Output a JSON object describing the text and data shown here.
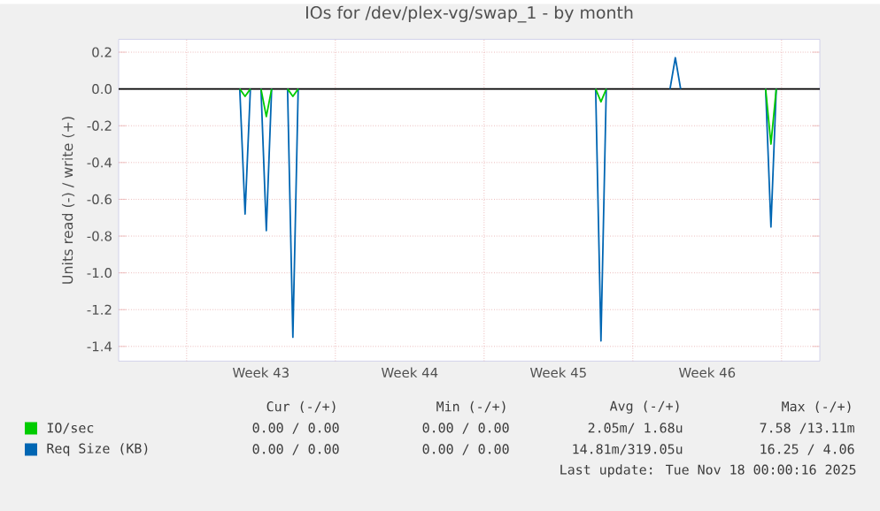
{
  "chart_data": {
    "type": "line",
    "title": "IOs for /dev/plex-vg/swap_1 - by month",
    "ylabel": "Units read (-) / write (+)",
    "categories": [
      null,
      null,
      null,
      null,
      null,
      null,
      null,
      null,
      null,
      null,
      null,
      null,
      null,
      null,
      null,
      null,
      null,
      null,
      null,
      null,
      null,
      null,
      null,
      null,
      null,
      null,
      "Week 43",
      null,
      null,
      null,
      null,
      null,
      null,
      null,
      null,
      null,
      null,
      null,
      null,
      null,
      null,
      null,
      null,
      null,
      null,
      null,
      null,
      null,
      null,
      null,
      null,
      null,
      null,
      null,
      "Week 44",
      null,
      null,
      null,
      null,
      null,
      null,
      null,
      null,
      null,
      null,
      null,
      null,
      null,
      null,
      null,
      null,
      null,
      null,
      null,
      null,
      null,
      null,
      null,
      null,
      null,
      null,
      null,
      "Week 45",
      null,
      null,
      null,
      null,
      null,
      null,
      null,
      null,
      null,
      null,
      null,
      null,
      null,
      null,
      null,
      null,
      null,
      null,
      null,
      null,
      null,
      null,
      null,
      null,
      null,
      null,
      null,
      "Week 46",
      null,
      null,
      null,
      null,
      null,
      null,
      null,
      null,
      null,
      null,
      null,
      null,
      null,
      null,
      null,
      null,
      null,
      null,
      null,
      null,
      null
    ],
    "ylim": [
      -1.48,
      0.27
    ],
    "yticks": [
      {
        "value": -1.4,
        "label": "-1.4"
      },
      {
        "value": -1.2,
        "label": "-1.2"
      },
      {
        "value": -1.0,
        "label": "-1.0"
      },
      {
        "value": -0.8,
        "label": "-0.8"
      },
      {
        "value": -0.6,
        "label": "-0.6"
      },
      {
        "value": -0.4,
        "label": "-0.4"
      },
      {
        "value": -0.2,
        "label": "-0.2"
      },
      {
        "value": 0,
        "label": "0.0"
      },
      {
        "value": 0.2,
        "label": "0.2"
      }
    ],
    "grid": true,
    "legend": "bottom",
    "ref_lines": [
      {
        "axis": "y",
        "value": 0,
        "color": "#000000"
      }
    ],
    "series": [
      {
        "name": "Req Size (KB)",
        "color": "#0066b3",
        "values": [
          null,
          null,
          null,
          null,
          null,
          null,
          null,
          null,
          null,
          null,
          null,
          null,
          null,
          null,
          null,
          null,
          null,
          null,
          null,
          null,
          null,
          null,
          0,
          -0.68,
          0,
          null,
          0,
          -0.77,
          0,
          null,
          null,
          0,
          -1.35,
          0,
          null,
          null,
          null,
          null,
          null,
          null,
          null,
          null,
          null,
          null,
          null,
          null,
          null,
          null,
          null,
          null,
          null,
          null,
          null,
          null,
          null,
          null,
          null,
          null,
          null,
          null,
          null,
          null,
          null,
          null,
          null,
          null,
          null,
          null,
          null,
          null,
          null,
          null,
          null,
          null,
          null,
          null,
          null,
          null,
          null,
          null,
          null,
          null,
          null,
          null,
          null,
          null,
          null,
          null,
          null,
          0,
          -1.37,
          0,
          null,
          null,
          null,
          null,
          null,
          null,
          null,
          null,
          null,
          null,
          null,
          0,
          0.17,
          0,
          null,
          null,
          null,
          null,
          null,
          null,
          null,
          null,
          null,
          null,
          null,
          null,
          null,
          null,
          null,
          0,
          -0.75,
          0,
          null,
          null,
          null,
          null,
          null,
          null,
          null,
          null
        ]
      },
      {
        "name": "IO/sec",
        "color": "#00cc00",
        "values": [
          null,
          null,
          null,
          null,
          null,
          null,
          null,
          null,
          null,
          null,
          null,
          null,
          null,
          null,
          null,
          null,
          null,
          null,
          null,
          null,
          null,
          null,
          0,
          -0.04,
          0,
          null,
          0,
          -0.15,
          0,
          null,
          null,
          0,
          -0.04,
          0,
          null,
          null,
          null,
          null,
          null,
          null,
          null,
          null,
          null,
          null,
          null,
          null,
          null,
          null,
          null,
          null,
          null,
          null,
          null,
          null,
          null,
          null,
          null,
          null,
          null,
          null,
          null,
          null,
          null,
          null,
          null,
          null,
          null,
          null,
          null,
          null,
          null,
          null,
          null,
          null,
          null,
          null,
          null,
          null,
          null,
          null,
          null,
          null,
          null,
          null,
          null,
          null,
          null,
          null,
          null,
          0,
          -0.07,
          0,
          null,
          null,
          null,
          null,
          null,
          null,
          null,
          null,
          null,
          null,
          null,
          null,
          null,
          null,
          null,
          null,
          null,
          null,
          null,
          null,
          null,
          null,
          null,
          null,
          null,
          null,
          null,
          null,
          null,
          0,
          -0.3,
          0,
          null,
          null,
          null,
          null,
          null,
          null,
          null,
          null
        ]
      }
    ],
    "annotations": [
      "Cur (-/+)",
      "Min (-/+)",
      "Avg (-/+)",
      "Max (-/+)",
      "0.00 / 0.00",
      "0.00 / 0.00",
      "2.05m/ 1.68u",
      "7.58 /13.11m",
      "0.00 / 0.00",
      "0.00 / 0.00",
      "14.81m/319.05u",
      "16.25 / 4.06",
      "Last update: Tue Nov 18 00:00:16 2025"
    ]
  }
}
